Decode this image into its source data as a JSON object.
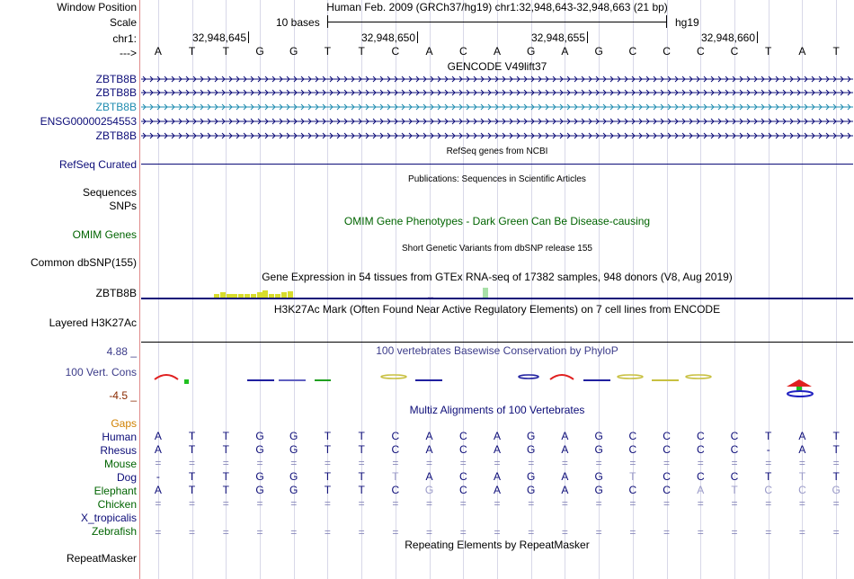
{
  "labels": {
    "window_position": "Window Position",
    "scale": "Scale",
    "chr": "chr1:",
    "strand": "--->",
    "gene1": "ZBTB8B",
    "gene2": "ZBTB8B",
    "gene3": "ZBTB8B",
    "gene4": "ENSG00000254553",
    "gene5": "ZBTB8B",
    "refseq": "RefSeq Curated",
    "sequences": "Sequences",
    "snps": "SNPs",
    "omim": "OMIM Genes",
    "dbsnp": "Common dbSNP(155)",
    "gtex_gene": "ZBTB8B",
    "h3k27ac": "Layered H3K27Ac",
    "cons_max": "4.88 _",
    "cons": "100 Vert. Cons",
    "cons_min": "-4.5 _",
    "gaps": "Gaps",
    "human": "Human",
    "rhesus": "Rhesus",
    "mouse": "Mouse",
    "dog": "Dog",
    "elephant": "Elephant",
    "chicken": "Chicken",
    "xtrop": "X_tropicalis",
    "zebrafish": "Zebrafish",
    "repeatmasker": "RepeatMasker"
  },
  "header": {
    "assembly_position": "Human Feb. 2009 (GRCh37/hg19)   chr1:32,948,643-32,948,663 (21 bp)",
    "scale_text": "10 bases",
    "db": "hg19",
    "ticks": [
      "32,948,645",
      "32,948,650",
      "32,948,655",
      "32,948,660"
    ]
  },
  "colors": {
    "label_blue": "#0c0c78",
    "teal": "#1f8cb0",
    "green": "#006400",
    "orange": "#d08000",
    "pink": "#e08a8a",
    "cons_top": "#3c3c8a",
    "cons_bottom": "#8a2a00",
    "gap_gray": "#8888bb",
    "yellow": "#d8dc2c"
  },
  "tracks": {
    "gencode_title": "GENCODE V49lift37",
    "refseq_title": "RefSeq genes from NCBI",
    "pubs_title": "Publications: Sequences in Scientific Articles",
    "omim_title": "OMIM Gene Phenotypes - Dark Green Can Be Disease-causing",
    "dbsnp_title": "Short Genetic Variants from dbSNP release 155",
    "gtex_title": "Gene Expression in 54 tissues from GTEx RNA-seq of 17382 samples, 948 donors (V8, Aug 2019)",
    "h3k_title": "H3K27Ac Mark (Often Found Near Active Regulatory Elements) on 7 cell lines from ENCODE",
    "phylop_title": "100 vertebrates Basewise Conservation by PhyloP",
    "multiz_title": "Multiz Alignments of 100 Vertebrates",
    "repeat_title": "Repeating Elements by RepeatMasker"
  },
  "sequence": {
    "reference": [
      "A",
      "T",
      "T",
      "G",
      "G",
      "T",
      "T",
      "C",
      "A",
      "C",
      "A",
      "G",
      "A",
      "G",
      "C",
      "C",
      "C",
      "C",
      "T",
      "A",
      "T"
    ],
    "human": [
      "A",
      "T",
      "T",
      "G",
      "G",
      "T",
      "T",
      "C",
      "A",
      "C",
      "A",
      "G",
      "A",
      "G",
      "C",
      "C",
      "C",
      "C",
      "T",
      "A",
      "T"
    ],
    "rhesus": [
      "A",
      "T",
      "T",
      "G",
      "G",
      "T",
      "T",
      "C",
      "A",
      "C",
      "A",
      "G",
      "A",
      "G",
      "C",
      "C",
      "C",
      "C",
      "-",
      "A",
      "T"
    ],
    "mouse": [
      "=",
      "=",
      "=",
      "=",
      "=",
      "=",
      "=",
      "=",
      "=",
      "=",
      "=",
      "=",
      "=",
      "=",
      "=",
      "=",
      "=",
      "=",
      "=",
      "=",
      "="
    ],
    "dog": [
      "-",
      "T",
      "T",
      "G",
      "G",
      "T",
      "T",
      "T",
      "A",
      "C",
      "A",
      "G",
      "A",
      "G",
      "T",
      "C",
      "C",
      "C",
      "T",
      "T",
      "T"
    ],
    "elephant": [
      "A",
      "T",
      "T",
      "G",
      "G",
      "T",
      "T",
      "C",
      "G",
      "C",
      "A",
      "G",
      "A",
      "G",
      "C",
      "C",
      "A",
      "T",
      "C",
      "C",
      "G"
    ],
    "chicken": [
      "=",
      "=",
      "=",
      "=",
      "=",
      "=",
      "=",
      "=",
      "=",
      "=",
      "=",
      "=",
      "=",
      "=",
      "=",
      "=",
      "=",
      "=",
      "=",
      "=",
      "="
    ],
    "xtrop": [
      "",
      "",
      "",
      "",
      "",
      "",
      "",
      "",
      "",
      "",
      "",
      "",
      "",
      "",
      "",
      "",
      "",
      "",
      "",
      "",
      ""
    ],
    "zebrafish": [
      "=",
      "=",
      "=",
      "=",
      "=",
      "=",
      "=",
      "=",
      "=",
      "=",
      "=",
      "=",
      "=",
      "=",
      "=",
      "=",
      "=",
      "=",
      "=",
      "=",
      "="
    ]
  },
  "gtex_values": [
    0,
    0,
    0,
    0,
    0,
    0.45,
    0.55,
    0.45,
    0.45,
    0.45,
    0.45,
    0.45,
    0.55,
    0.75,
    0.45,
    0.45,
    0.55,
    0.65,
    0.1,
    0.1,
    0.1,
    0.1,
    0.1,
    0.1,
    0.1,
    0.1,
    0.1,
    0.1,
    0.1,
    0.1,
    0.1,
    0.1,
    0.1,
    0.1,
    0.1,
    0.1,
    0.1,
    0.1,
    0.1,
    0.1,
    0.2,
    0.1,
    0.1,
    0.1,
    0.1,
    0.1,
    0.1,
    0.1,
    0.1,
    1.0,
    0.1,
    0.1,
    0.1,
    0.1
  ]
}
